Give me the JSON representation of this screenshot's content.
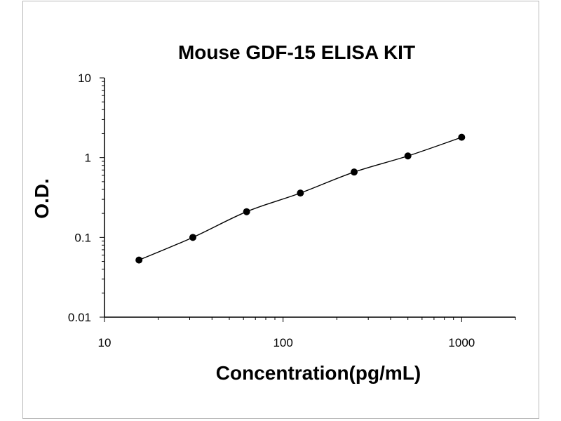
{
  "chart_data": {
    "type": "scatter",
    "title": "Mouse GDF-15 ELISA KIT",
    "xlabel": "Concentration(pg/mL)",
    "ylabel": "O.D.",
    "x_scale": "log",
    "y_scale": "log",
    "xlim": [
      10,
      2000
    ],
    "ylim": [
      0.01,
      10
    ],
    "x_ticks": [
      10,
      100,
      1000
    ],
    "x_tick_labels": [
      "10",
      "100",
      "1000"
    ],
    "y_ticks": [
      0.01,
      0.1,
      1,
      10
    ],
    "y_tick_labels": [
      "0.01",
      "0.1",
      "1",
      "10"
    ],
    "grid": false,
    "series": [
      {
        "x": [
          15.6,
          31.25,
          62.5,
          125,
          250,
          500,
          1000
        ],
        "y": [
          0.052,
          0.1,
          0.21,
          0.36,
          0.66,
          1.05,
          1.8
        ],
        "marker": "circle",
        "color": "#000000",
        "fit_line": true
      }
    ]
  }
}
